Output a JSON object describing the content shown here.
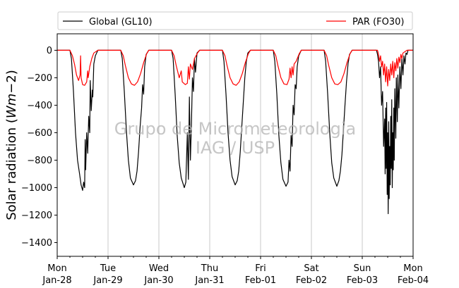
{
  "chart_data": {
    "type": "line",
    "ylabel_main": "Solar radiation (",
    "ylabel_italic": "Wm",
    "ylabel_tail": "−2)",
    "ylim": [
      -1500,
      120
    ],
    "yticks": [
      0,
      -200,
      -400,
      -600,
      -800,
      -1000,
      -1200,
      -1400
    ],
    "ytick_labels": [
      "0",
      "−200",
      "−400",
      "−600",
      "−800",
      "−1000",
      "−1200",
      "−1400"
    ],
    "xlim_days": [
      0,
      7
    ],
    "xticks": [
      {
        "day": 0,
        "line1": "Mon",
        "line2": "Jan-28"
      },
      {
        "day": 1,
        "line1": "Tue",
        "line2": "Jan-29"
      },
      {
        "day": 2,
        "line1": "Wed",
        "line2": "Jan-30"
      },
      {
        "day": 3,
        "line1": "Thu",
        "line2": "Jan-31"
      },
      {
        "day": 4,
        "line1": "Fri",
        "line2": "Feb-01"
      },
      {
        "day": 5,
        "line1": "Sat",
        "line2": "Feb-02"
      },
      {
        "day": 6,
        "line1": "Sun",
        "line2": "Feb-03"
      },
      {
        "day": 7,
        "line1": "Mon",
        "line2": "Feb-04"
      }
    ],
    "grid": "vertical",
    "legend_placement": "top-above",
    "watermark": [
      "Grupo de Micrometeorologia",
      "IAG / USP"
    ],
    "series": [
      {
        "name": "Global (GL10)",
        "color": "#000000",
        "points": [
          [
            0.0,
            0
          ],
          [
            0.25,
            0
          ],
          [
            0.28,
            -60
          ],
          [
            0.32,
            -300
          ],
          [
            0.36,
            -600
          ],
          [
            0.4,
            -800
          ],
          [
            0.44,
            -900
          ],
          [
            0.47,
            -980
          ],
          [
            0.5,
            -1020
          ],
          [
            0.52,
            -960
          ],
          [
            0.54,
            -1000
          ],
          [
            0.55,
            -650
          ],
          [
            0.56,
            -870
          ],
          [
            0.58,
            -600
          ],
          [
            0.6,
            -750
          ],
          [
            0.62,
            -480
          ],
          [
            0.64,
            -600
          ],
          [
            0.65,
            -220
          ],
          [
            0.67,
            -440
          ],
          [
            0.69,
            -290
          ],
          [
            0.7,
            -340
          ],
          [
            0.72,
            -100
          ],
          [
            0.75,
            -40
          ],
          [
            0.8,
            0
          ],
          [
            1.0,
            0
          ],
          [
            1.25,
            0
          ],
          [
            1.28,
            -60
          ],
          [
            1.32,
            -300
          ],
          [
            1.36,
            -580
          ],
          [
            1.4,
            -800
          ],
          [
            1.44,
            -930
          ],
          [
            1.5,
            -980
          ],
          [
            1.54,
            -950
          ],
          [
            1.57,
            -880
          ],
          [
            1.6,
            -740
          ],
          [
            1.63,
            -560
          ],
          [
            1.66,
            -420
          ],
          [
            1.68,
            -250
          ],
          [
            1.7,
            -320
          ],
          [
            1.72,
            -120
          ],
          [
            1.75,
            -30
          ],
          [
            1.8,
            0
          ],
          [
            2.0,
            0
          ],
          [
            2.25,
            0
          ],
          [
            2.28,
            -60
          ],
          [
            2.32,
            -320
          ],
          [
            2.36,
            -620
          ],
          [
            2.4,
            -820
          ],
          [
            2.44,
            -930
          ],
          [
            2.5,
            -1000
          ],
          [
            2.53,
            -960
          ],
          [
            2.56,
            -600
          ],
          [
            2.58,
            -940
          ],
          [
            2.6,
            -340
          ],
          [
            2.62,
            -800
          ],
          [
            2.64,
            -540
          ],
          [
            2.66,
            -200
          ],
          [
            2.68,
            -300
          ],
          [
            2.7,
            -60
          ],
          [
            2.72,
            -160
          ],
          [
            2.75,
            -20
          ],
          [
            2.8,
            0
          ],
          [
            3.0,
            0
          ],
          [
            3.25,
            0
          ],
          [
            3.28,
            -80
          ],
          [
            3.32,
            -320
          ],
          [
            3.36,
            -600
          ],
          [
            3.4,
            -800
          ],
          [
            3.44,
            -920
          ],
          [
            3.5,
            -980
          ],
          [
            3.54,
            -950
          ],
          [
            3.57,
            -880
          ],
          [
            3.6,
            -740
          ],
          [
            3.63,
            -560
          ],
          [
            3.66,
            -380
          ],
          [
            3.69,
            -200
          ],
          [
            3.72,
            -80
          ],
          [
            3.75,
            -20
          ],
          [
            3.8,
            0
          ],
          [
            4.0,
            0
          ],
          [
            4.25,
            0
          ],
          [
            4.28,
            -80
          ],
          [
            4.32,
            -320
          ],
          [
            4.36,
            -620
          ],
          [
            4.4,
            -820
          ],
          [
            4.44,
            -940
          ],
          [
            4.5,
            -990
          ],
          [
            4.54,
            -960
          ],
          [
            4.56,
            -800
          ],
          [
            4.58,
            -880
          ],
          [
            4.6,
            -620
          ],
          [
            4.62,
            -700
          ],
          [
            4.64,
            -400
          ],
          [
            4.66,
            -470
          ],
          [
            4.68,
            -250
          ],
          [
            4.7,
            -280
          ],
          [
            4.72,
            -120
          ],
          [
            4.75,
            -40
          ],
          [
            4.8,
            0
          ],
          [
            5.0,
            0
          ],
          [
            5.25,
            0
          ],
          [
            5.28,
            -80
          ],
          [
            5.32,
            -320
          ],
          [
            5.36,
            -600
          ],
          [
            5.4,
            -820
          ],
          [
            5.44,
            -930
          ],
          [
            5.5,
            -990
          ],
          [
            5.54,
            -950
          ],
          [
            5.57,
            -880
          ],
          [
            5.6,
            -760
          ],
          [
            5.63,
            -580
          ],
          [
            5.66,
            -400
          ],
          [
            5.69,
            -230
          ],
          [
            5.72,
            -100
          ],
          [
            5.75,
            -30
          ],
          [
            5.8,
            0
          ],
          [
            6.0,
            0
          ],
          [
            6.28,
            0
          ],
          [
            6.3,
            -30
          ],
          [
            6.32,
            -80
          ],
          [
            6.34,
            -200
          ],
          [
            6.36,
            -120
          ],
          [
            6.38,
            -400
          ],
          [
            6.4,
            -300
          ],
          [
            6.42,
            -700
          ],
          [
            6.44,
            -500
          ],
          [
            6.45,
            -900
          ],
          [
            6.46,
            -420
          ],
          [
            6.47,
            -860
          ],
          [
            6.48,
            -380
          ],
          [
            6.49,
            -1050
          ],
          [
            6.5,
            -600
          ],
          [
            6.51,
            -1190
          ],
          [
            6.52,
            -520
          ],
          [
            6.53,
            -1080
          ],
          [
            6.54,
            -700
          ],
          [
            6.55,
            -980
          ],
          [
            6.56,
            -480
          ],
          [
            6.57,
            -860
          ],
          [
            6.58,
            -360
          ],
          [
            6.59,
            -1000
          ],
          [
            6.6,
            -600
          ],
          [
            6.61,
            -870
          ],
          [
            6.62,
            -420
          ],
          [
            6.63,
            -800
          ],
          [
            6.64,
            -280
          ],
          [
            6.66,
            -640
          ],
          [
            6.67,
            -200
          ],
          [
            6.69,
            -520
          ],
          [
            6.7,
            -180
          ],
          [
            6.72,
            -420
          ],
          [
            6.74,
            -120
          ],
          [
            6.76,
            -280
          ],
          [
            6.78,
            -60
          ],
          [
            6.8,
            -180
          ],
          [
            6.82,
            -40
          ],
          [
            6.84,
            -100
          ],
          [
            6.86,
            -20
          ],
          [
            6.88,
            -30
          ],
          [
            6.9,
            0
          ],
          [
            7.0,
            0
          ]
        ]
      },
      {
        "name": "PAR (FO30)",
        "color": "#ff0000",
        "points": [
          [
            0.0,
            0
          ],
          [
            0.25,
            0
          ],
          [
            0.3,
            -40
          ],
          [
            0.34,
            -100
          ],
          [
            0.38,
            -180
          ],
          [
            0.42,
            -220
          ],
          [
            0.45,
            -180
          ],
          [
            0.46,
            -40
          ],
          [
            0.47,
            -200
          ],
          [
            0.5,
            -250
          ],
          [
            0.54,
            -255
          ],
          [
            0.58,
            -230
          ],
          [
            0.6,
            -150
          ],
          [
            0.61,
            -200
          ],
          [
            0.64,
            -120
          ],
          [
            0.68,
            -60
          ],
          [
            0.72,
            -20
          ],
          [
            0.8,
            0
          ],
          [
            1.0,
            0
          ],
          [
            1.25,
            0
          ],
          [
            1.3,
            -40
          ],
          [
            1.34,
            -110
          ],
          [
            1.4,
            -200
          ],
          [
            1.46,
            -245
          ],
          [
            1.52,
            -255
          ],
          [
            1.58,
            -230
          ],
          [
            1.64,
            -170
          ],
          [
            1.7,
            -90
          ],
          [
            1.76,
            -25
          ],
          [
            1.8,
            0
          ],
          [
            2.0,
            0
          ],
          [
            2.25,
            0
          ],
          [
            2.3,
            -40
          ],
          [
            2.34,
            -110
          ],
          [
            2.4,
            -200
          ],
          [
            2.44,
            -150
          ],
          [
            2.46,
            -230
          ],
          [
            2.52,
            -250
          ],
          [
            2.56,
            -240
          ],
          [
            2.58,
            -120
          ],
          [
            2.6,
            -210
          ],
          [
            2.62,
            -100
          ],
          [
            2.66,
            -140
          ],
          [
            2.7,
            -60
          ],
          [
            2.76,
            -20
          ],
          [
            2.8,
            0
          ],
          [
            3.0,
            0
          ],
          [
            3.25,
            0
          ],
          [
            3.3,
            -40
          ],
          [
            3.34,
            -110
          ],
          [
            3.4,
            -200
          ],
          [
            3.46,
            -245
          ],
          [
            3.52,
            -255
          ],
          [
            3.58,
            -230
          ],
          [
            3.64,
            -170
          ],
          [
            3.7,
            -90
          ],
          [
            3.76,
            -25
          ],
          [
            3.8,
            0
          ],
          [
            4.0,
            0
          ],
          [
            4.25,
            0
          ],
          [
            4.3,
            -40
          ],
          [
            4.34,
            -110
          ],
          [
            4.4,
            -200
          ],
          [
            4.46,
            -245
          ],
          [
            4.52,
            -250
          ],
          [
            4.56,
            -210
          ],
          [
            4.58,
            -130
          ],
          [
            4.6,
            -200
          ],
          [
            4.62,
            -120
          ],
          [
            4.64,
            -180
          ],
          [
            4.66,
            -100
          ],
          [
            4.7,
            -80
          ],
          [
            4.76,
            -25
          ],
          [
            4.8,
            0
          ],
          [
            5.0,
            0
          ],
          [
            5.25,
            0
          ],
          [
            5.3,
            -40
          ],
          [
            5.34,
            -110
          ],
          [
            5.4,
            -200
          ],
          [
            5.46,
            -245
          ],
          [
            5.52,
            -250
          ],
          [
            5.58,
            -230
          ],
          [
            5.64,
            -170
          ],
          [
            5.7,
            -90
          ],
          [
            5.76,
            -25
          ],
          [
            5.8,
            0
          ],
          [
            6.0,
            0
          ],
          [
            6.3,
            0
          ],
          [
            6.32,
            -30
          ],
          [
            6.34,
            -80
          ],
          [
            6.36,
            -40
          ],
          [
            6.38,
            -120
          ],
          [
            6.4,
            -80
          ],
          [
            6.42,
            -180
          ],
          [
            6.44,
            -100
          ],
          [
            6.46,
            -230
          ],
          [
            6.48,
            -120
          ],
          [
            6.5,
            -260
          ],
          [
            6.52,
            -140
          ],
          [
            6.54,
            -220
          ],
          [
            6.56,
            -100
          ],
          [
            6.58,
            -180
          ],
          [
            6.6,
            -80
          ],
          [
            6.62,
            -200
          ],
          [
            6.64,
            -90
          ],
          [
            6.66,
            -150
          ],
          [
            6.68,
            -60
          ],
          [
            6.7,
            -130
          ],
          [
            6.72,
            -50
          ],
          [
            6.74,
            -90
          ],
          [
            6.76,
            -30
          ],
          [
            6.78,
            -60
          ],
          [
            6.8,
            -20
          ],
          [
            6.84,
            -10
          ],
          [
            6.88,
            0
          ],
          [
            7.0,
            0
          ]
        ]
      }
    ]
  }
}
